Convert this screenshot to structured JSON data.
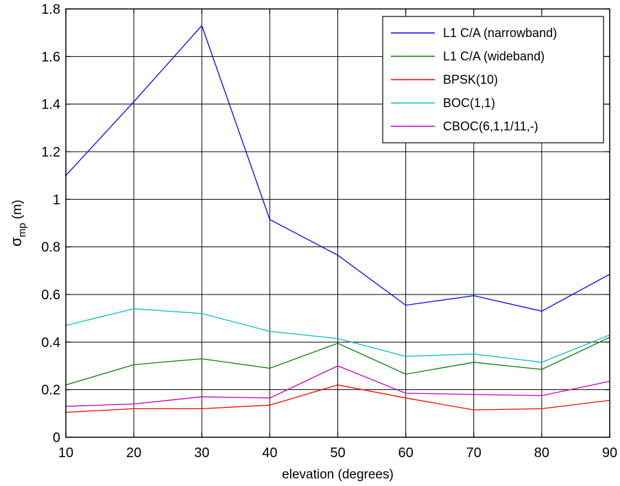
{
  "chart_data": {
    "type": "line",
    "title": "",
    "xlabel": "elevation (degrees)",
    "ylabel_main": "σ",
    "ylabel_sub": "mp",
    "ylabel_unit": " (m)",
    "x": [
      10,
      20,
      30,
      40,
      50,
      60,
      70,
      80,
      90
    ],
    "xlim": [
      10,
      90
    ],
    "ylim": [
      0,
      1.8
    ],
    "xticks": [
      "10",
      "20",
      "30",
      "40",
      "50",
      "60",
      "70",
      "80",
      "90"
    ],
    "yticks": [
      "0",
      "0.2",
      "0.4",
      "0.6",
      "0.8",
      "1",
      "1.2",
      "1.4",
      "1.6",
      "1.8"
    ],
    "grid": true,
    "legend_position": "top-right",
    "series": [
      {
        "name": "L1 C/A (narrowband)",
        "color": "#0000ff",
        "values": [
          1.1,
          1.41,
          1.73,
          0.915,
          0.765,
          0.555,
          0.595,
          0.53,
          0.685
        ]
      },
      {
        "name": "L1 C/A (wideband)",
        "color": "#007f00",
        "values": [
          0.22,
          0.305,
          0.33,
          0.29,
          0.395,
          0.265,
          0.315,
          0.285,
          0.42
        ]
      },
      {
        "name": "BPSK(10)",
        "color": "#ff0000",
        "values": [
          0.105,
          0.12,
          0.12,
          0.135,
          0.22,
          0.165,
          0.115,
          0.12,
          0.155
        ]
      },
      {
        "name": "BOC(1,1)",
        "color": "#00bfbf",
        "values": [
          0.47,
          0.54,
          0.52,
          0.445,
          0.415,
          0.34,
          0.35,
          0.315,
          0.43
        ]
      },
      {
        "name": "CBOC(6,1,1/11,-)",
        "color": "#bf00bf",
        "values": [
          0.13,
          0.14,
          0.17,
          0.165,
          0.3,
          0.185,
          0.18,
          0.175,
          0.235
        ]
      }
    ]
  }
}
